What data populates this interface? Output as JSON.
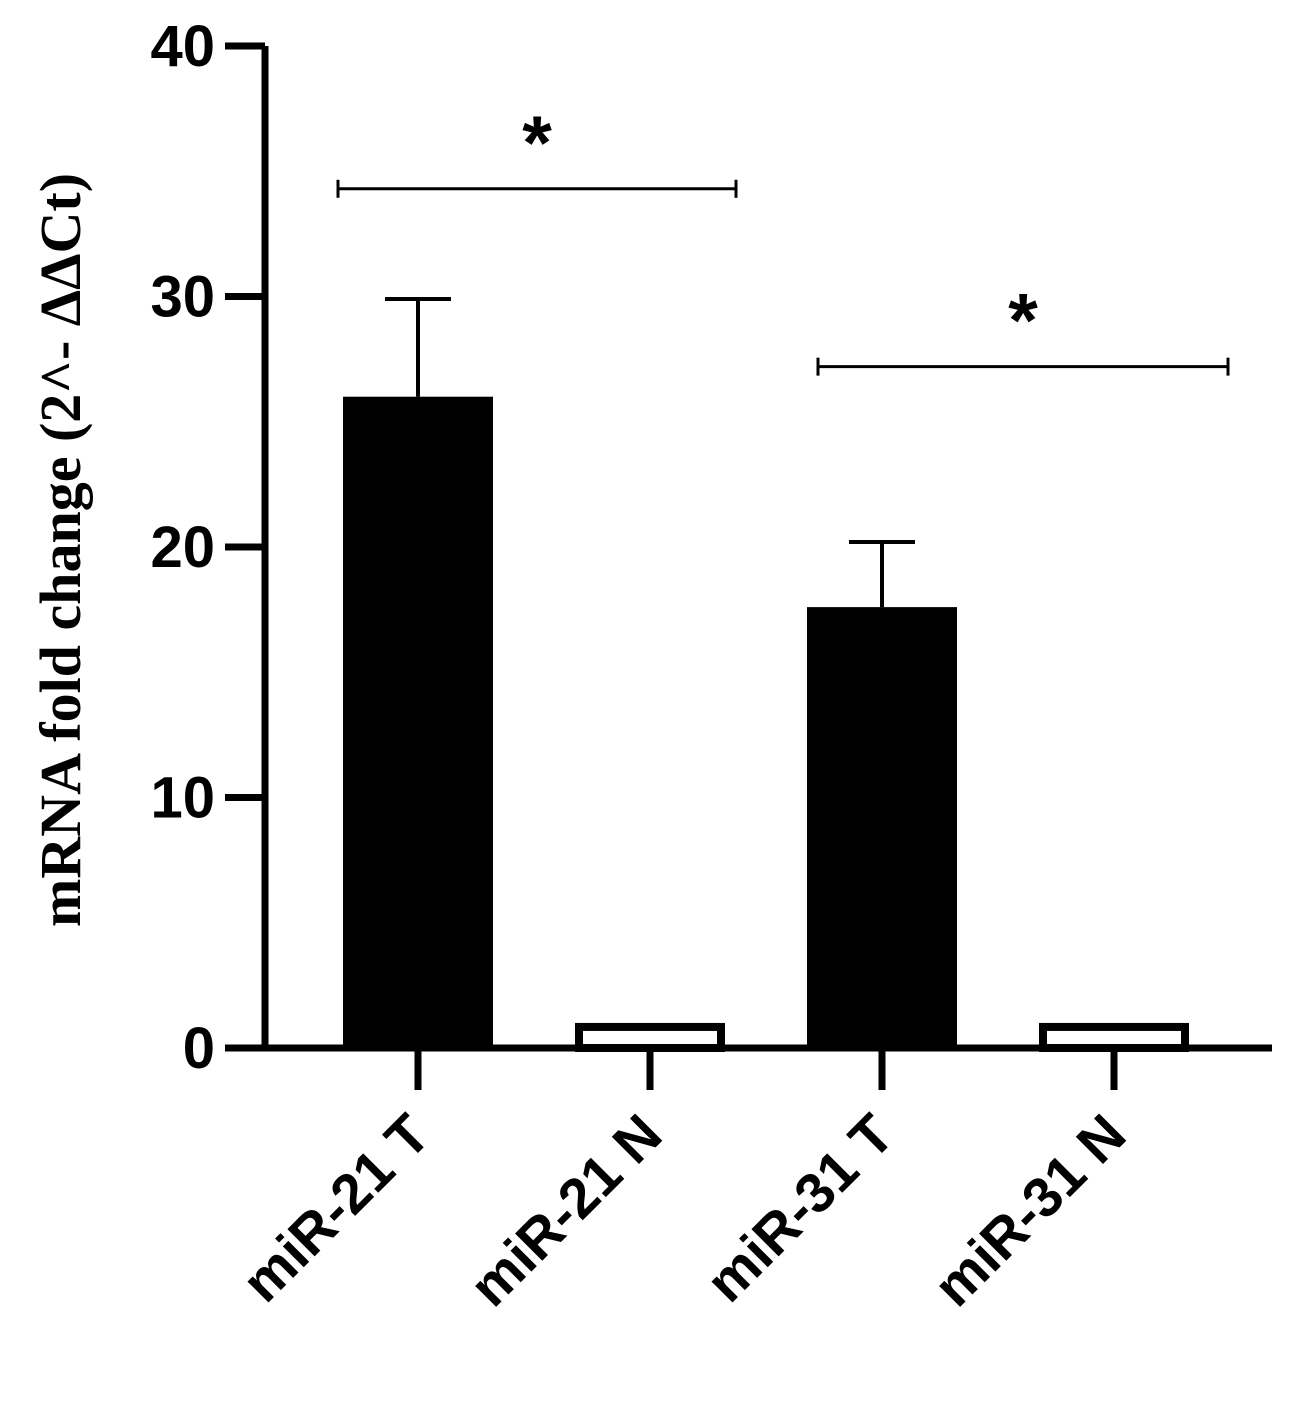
{
  "chart_data": {
    "type": "bar",
    "title": "",
    "xlabel": "",
    "ylabel": "mRNA fold change (2^- ΔΔCt)",
    "ylim": [
      0,
      40
    ],
    "yticks": [
      "0",
      "10",
      "20",
      "30",
      "40"
    ],
    "categories": [
      "miR-21 T",
      "miR-21 N",
      "miR-31 T",
      "miR-31 N"
    ],
    "values": [
      26,
      1,
      17.6,
      1
    ],
    "error_upper": [
      29.9,
      1,
      20.2,
      1
    ],
    "bar_colors": [
      "#000000",
      "#ffffff",
      "#000000",
      "#ffffff"
    ],
    "significance": [
      {
        "from": 0,
        "to": 1,
        "label": "*",
        "y": 34.3
      },
      {
        "from": 2,
        "to": 3,
        "label": "*",
        "y": 27.2
      }
    ]
  }
}
